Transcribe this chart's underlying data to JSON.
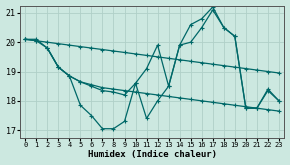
{
  "xlabel": "Humidex (Indice chaleur)",
  "background_color": "#cce8e0",
  "grid_color": "#b0d0c8",
  "line_color": "#006868",
  "series": [
    {
      "x": [
        0,
        1,
        2,
        3,
        4,
        5,
        6,
        7,
        8,
        9,
        10,
        11,
        12,
        13,
        14,
        15,
        16,
        17,
        18,
        19,
        20,
        21,
        22,
        23
      ],
      "y": [
        20.1,
        20.05,
        20.0,
        19.95,
        19.9,
        19.85,
        19.8,
        19.75,
        19.7,
        19.65,
        19.6,
        19.55,
        19.5,
        19.45,
        19.4,
        19.35,
        19.3,
        19.25,
        19.2,
        19.15,
        19.1,
        19.05,
        19.0,
        18.95
      ]
    },
    {
      "x": [
        0,
        1,
        2,
        3,
        4,
        5,
        6,
        7,
        8,
        9,
        10,
        11,
        12,
        13,
        14,
        15,
        16,
        17,
        18,
        19,
        20,
        21,
        22,
        23
      ],
      "y": [
        20.1,
        20.05,
        19.8,
        19.15,
        18.85,
        18.65,
        18.55,
        18.45,
        18.4,
        18.35,
        18.3,
        18.25,
        18.2,
        18.15,
        18.1,
        18.05,
        18.0,
        17.95,
        17.9,
        17.85,
        17.8,
        17.75,
        17.7,
        17.65
      ]
    },
    {
      "x": [
        0,
        1,
        2,
        3,
        4,
        5,
        6,
        7,
        8,
        9,
        10,
        11,
        12,
        13,
        14,
        15,
        16,
        17,
        18,
        19,
        20,
        21,
        22,
        23
      ],
      "y": [
        20.1,
        20.1,
        19.8,
        19.15,
        18.85,
        17.85,
        17.5,
        17.05,
        17.05,
        17.3,
        18.6,
        17.4,
        18.0,
        18.5,
        19.9,
        20.0,
        20.5,
        21.1,
        20.5,
        20.2,
        17.75,
        17.75,
        18.4,
        18.0
      ]
    },
    {
      "x": [
        2,
        3,
        4,
        5,
        6,
        7,
        8,
        9,
        10,
        11,
        12,
        13,
        14,
        15,
        16,
        17,
        18,
        19,
        20,
        21,
        22,
        23
      ],
      "y": [
        19.8,
        19.15,
        18.85,
        18.65,
        18.5,
        18.35,
        18.3,
        18.2,
        18.6,
        19.1,
        19.9,
        18.5,
        19.9,
        20.6,
        20.8,
        21.2,
        20.5,
        20.2,
        17.75,
        17.75,
        18.35,
        18.0
      ]
    }
  ],
  "xlim": [
    0,
    23
  ],
  "ylim": [
    16.75,
    21.25
  ],
  "yticks": [
    17,
    18,
    19,
    20,
    21
  ],
  "xticks": [
    0,
    1,
    2,
    3,
    4,
    5,
    6,
    7,
    8,
    9,
    10,
    11,
    12,
    13,
    14,
    15,
    16,
    17,
    18,
    19,
    20,
    21,
    22,
    23
  ]
}
